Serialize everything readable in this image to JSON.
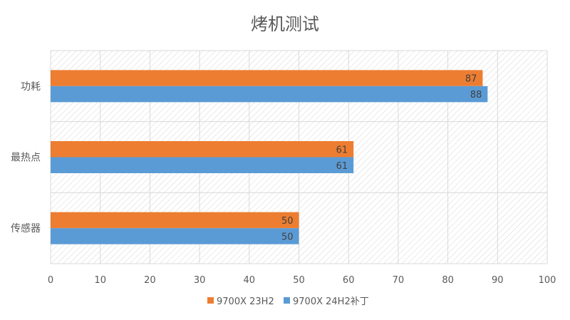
{
  "chart_data": {
    "type": "bar",
    "orientation": "horizontal",
    "title": "烤机测试",
    "categories": [
      "功耗",
      "最热点",
      "传感器"
    ],
    "series": [
      {
        "name": "9700X 23H2",
        "color": "#ED7D31",
        "values": [
          87,
          61,
          50
        ]
      },
      {
        "name": "9700X 24H2补丁",
        "color": "#5B9BD5",
        "values": [
          88,
          61,
          50
        ]
      }
    ],
    "xlim": [
      0,
      100
    ],
    "xticks": [
      0,
      10,
      20,
      30,
      40,
      50,
      60,
      70,
      80,
      90,
      100
    ],
    "xlabel": "",
    "ylabel": "",
    "grid": true,
    "legend": "bottom"
  }
}
